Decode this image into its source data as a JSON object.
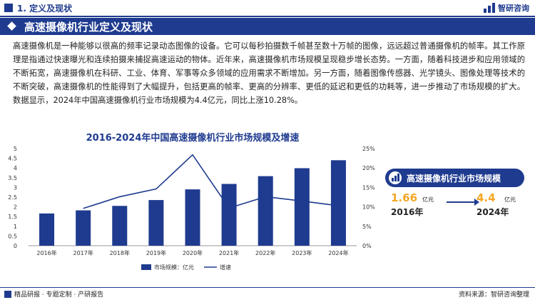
{
  "header": {
    "section": "1. 定义及现状",
    "logo_text": "智研咨询"
  },
  "banner": {
    "title": "高速摄像机行业定义及现状"
  },
  "body": {
    "paragraph": "高速摄像机是一种能够以很高的频率记录动态图像的设备。它可以每秒拍摄数千帧甚至数十万帧的图像，远远超过普通摄像机的帧率。其工作原理是指通过快速曝光和连续拍摄来捕捉高速运动的物体。近年来，高速摄像机市场规模呈现稳步增长态势。一方面，随着科技进步和应用领域的不断拓宽，高速摄像机在科研、工业、体育、军事等众多领域的应用需求不断增加。另一方面，随着图像传感器、光学镜头、图像处理等技术的不断突破，高速摄像机的性能得到了大幅提升，包括更高的帧率、更高的分辨率、更低的延迟和更低的功耗等，进一步推动了市场规模的扩大。数据显示，2024年中国高速摄像机行业市场规模为4.4亿元，同比上涨10.28%。"
  },
  "chart_data": {
    "type": "bar",
    "title": "2016-2024年中国高速摄像机行业市场规模及增速",
    "categories": [
      "2016年",
      "2017年",
      "2018年",
      "2019年",
      "2020年",
      "2021年",
      "2022年",
      "2023年",
      "2024年"
    ],
    "series": [
      {
        "name": "市场规模：亿元",
        "type": "bar",
        "axis": "left",
        "values": [
          1.66,
          1.82,
          2.05,
          2.35,
          2.9,
          3.18,
          3.58,
          3.99,
          4.4
        ]
      },
      {
        "name": "增速",
        "type": "line",
        "axis": "right",
        "values": [
          null,
          9.6,
          12.6,
          14.6,
          23.4,
          9.7,
          12.6,
          11.5,
          10.28
        ]
      }
    ],
    "y_left": {
      "ylim": [
        0,
        5
      ],
      "ticks": [
        "0",
        "0.5",
        "1",
        "1.5",
        "2",
        "2.5",
        "3",
        "3.5",
        "4",
        "4.5",
        "5"
      ]
    },
    "y_right": {
      "ylim": [
        0,
        25
      ],
      "ticks": [
        "0%",
        "5%",
        "10%",
        "15%",
        "20%",
        "25%"
      ]
    },
    "legend_position": "bottom",
    "grid": false,
    "colors": {
      "bar": "#1f3b8f",
      "line": "#1f3b8f"
    }
  },
  "card": {
    "title": "高速摄像机行业市场规模",
    "left_value": "1.66",
    "left_unit": "亿元",
    "left_year": "2016年",
    "right_value": "4.4",
    "right_unit": "亿元",
    "right_year": "2024年"
  },
  "footer": {
    "left": "精品研报 · 专题定制 · 产研报告",
    "right": "资料来源：智研咨询整理"
  }
}
